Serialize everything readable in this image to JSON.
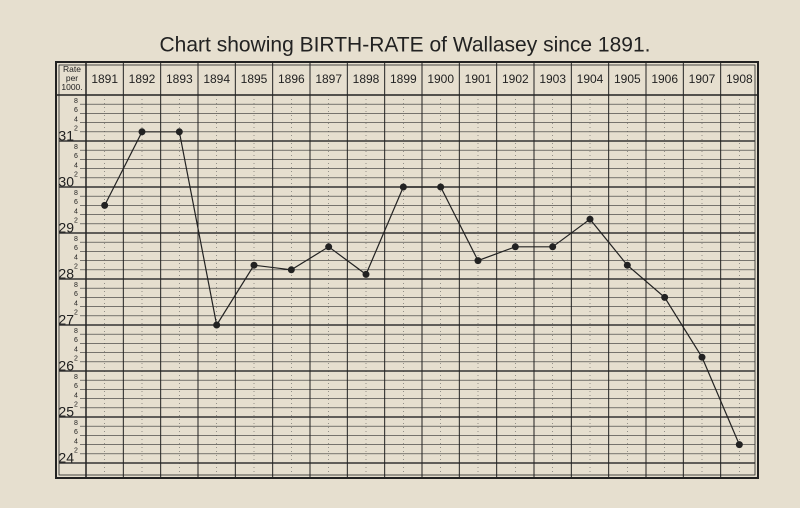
{
  "chart_data": {
    "type": "line",
    "title": "Chart showing BIRTH-RATE of Wallasey since 1891.",
    "y_label": "Rate per 1000.",
    "categories": [
      "1891",
      "1892",
      "1893",
      "1894",
      "1895",
      "1896",
      "1897",
      "1898",
      "1899",
      "1900",
      "1901",
      "1902",
      "1903",
      "1904",
      "1905",
      "1906",
      "1907",
      "1908"
    ],
    "series": [
      {
        "name": "Birth-rate",
        "color": "#222222",
        "values": [
          29.6,
          31.2,
          31.2,
          27.0,
          28.3,
          28.2,
          28.7,
          28.1,
          30.0,
          30.0,
          28.4,
          28.7,
          28.7,
          29.3,
          28.3,
          27.6,
          26.3,
          24.4
        ]
      }
    ],
    "ylim": [
      24,
      32
    ],
    "yticks": [
      24,
      {
        "value": 24.2,
        "label": "2"
      },
      {
        "value": 24.4,
        "label": "4"
      },
      {
        "value": 24.6,
        "label": "6"
      },
      {
        "value": 24.8,
        "label": "8"
      },
      25,
      {
        "value": 25.2,
        "label": "2"
      },
      {
        "value": 25.4,
        "label": "4"
      },
      {
        "value": 25.6,
        "label": "6"
      },
      {
        "value": 25.8,
        "label": "8"
      },
      26,
      {
        "value": 26.2,
        "label": "2"
      },
      {
        "value": 26.4,
        "label": "4"
      },
      {
        "value": 26.6,
        "label": "6"
      },
      {
        "value": 26.8,
        "label": "8"
      },
      27,
      {
        "value": 27.2,
        "label": "2"
      },
      {
        "value": 27.4,
        "label": "4"
      },
      {
        "value": 27.6,
        "label": "6"
      },
      {
        "value": 27.8,
        "label": "8"
      },
      28,
      {
        "value": 28.2,
        "label": "2"
      },
      {
        "value": 28.4,
        "label": "4"
      },
      {
        "value": 28.6,
        "label": "6"
      },
      {
        "value": 28.8,
        "label": "8"
      },
      29,
      {
        "value": 29.2,
        "label": "2"
      },
      {
        "value": 29.4,
        "label": "4"
      },
      {
        "value": 29.6,
        "label": "6"
      },
      {
        "value": 29.8,
        "label": "8"
      },
      30,
      {
        "value": 30.2,
        "label": "2"
      },
      {
        "value": 30.4,
        "label": "4"
      },
      {
        "value": 30.6,
        "label": "6"
      },
      {
        "value": 30.8,
        "label": "8"
      },
      31,
      {
        "value": 31.2,
        "label": "2"
      },
      {
        "value": 31.4,
        "label": "4"
      },
      {
        "value": 31.6,
        "label": "6"
      },
      {
        "value": 31.8,
        "label": "8"
      }
    ],
    "grid": true
  }
}
